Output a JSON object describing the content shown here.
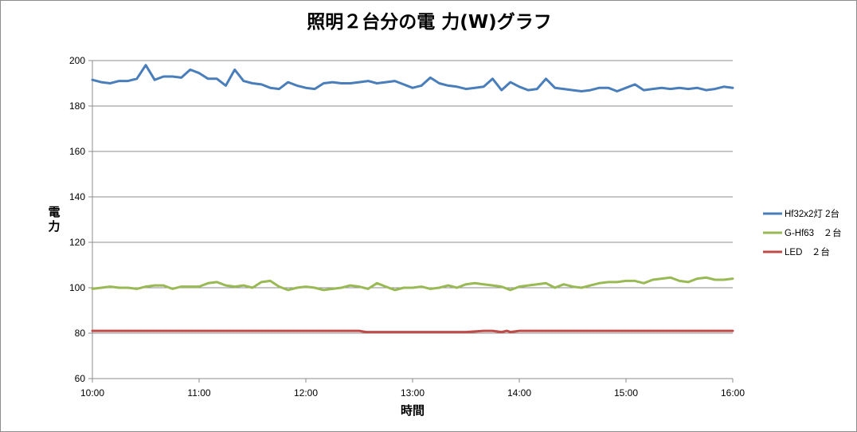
{
  "chart_data": {
    "type": "line",
    "title": "照明２台分の電 力(W)グラフ",
    "xlabel": "時間",
    "ylabel": "電\n力",
    "ylim": [
      60,
      200
    ],
    "yticks": [
      60,
      80,
      100,
      120,
      140,
      160,
      180,
      200
    ],
    "xlim": [
      "10:00",
      "16:00"
    ],
    "xticks": [
      "10:00",
      "11:00",
      "12:00",
      "13:00",
      "14:00",
      "15:00",
      "16:00"
    ],
    "grid": true,
    "legend_position": "right",
    "series": [
      {
        "name": "Hf32x2灯 2台",
        "color": "#4a7ebb",
        "x": [
          "10:00",
          "10:05",
          "10:10",
          "10:15",
          "10:20",
          "10:25",
          "10:30",
          "10:35",
          "10:40",
          "10:45",
          "10:50",
          "10:55",
          "11:00",
          "11:05",
          "11:10",
          "11:15",
          "11:20",
          "11:25",
          "11:30",
          "11:35",
          "11:40",
          "11:45",
          "11:50",
          "11:55",
          "12:00",
          "12:05",
          "12:10",
          "12:15",
          "12:20",
          "12:25",
          "12:30",
          "12:35",
          "12:40",
          "12:45",
          "12:50",
          "12:55",
          "13:00",
          "13:05",
          "13:10",
          "13:15",
          "13:20",
          "13:25",
          "13:30",
          "13:35",
          "13:40",
          "13:45",
          "13:50",
          "13:55",
          "14:00",
          "14:05",
          "14:10",
          "14:15",
          "14:20",
          "14:25",
          "14:30",
          "14:35",
          "14:40",
          "14:45",
          "14:50",
          "14:55",
          "15:00",
          "15:05",
          "15:10",
          "15:15",
          "15:20",
          "15:25",
          "15:30",
          "15:35",
          "15:40",
          "15:45",
          "15:50",
          "15:55",
          "16:00"
        ],
        "values": [
          191.5,
          190.5,
          190,
          191,
          191,
          192,
          198,
          191.5,
          193,
          193,
          192.5,
          196,
          194.5,
          192,
          192,
          189,
          196,
          191,
          190,
          189.5,
          188,
          187.5,
          190.5,
          189,
          188,
          187.5,
          190,
          190.5,
          190,
          190,
          190.5,
          191,
          190,
          190.5,
          191,
          189.5,
          188,
          189,
          192.5,
          190,
          189,
          188.5,
          187.5,
          188,
          188.5,
          192,
          187,
          190.5,
          188.5,
          187,
          187.5,
          192,
          188,
          187.5,
          187,
          186.5,
          187,
          188,
          188,
          186.5,
          188,
          189.5,
          187,
          187.5,
          188,
          187.5,
          188,
          187.5,
          188,
          187,
          187.5,
          188.5,
          188
        ]
      },
      {
        "name": "G-Hf63　２台",
        "color": "#98b954",
        "x": [
          "10:00",
          "10:05",
          "10:10",
          "10:15",
          "10:20",
          "10:25",
          "10:30",
          "10:35",
          "10:40",
          "10:45",
          "10:50",
          "10:55",
          "11:00",
          "11:05",
          "11:10",
          "11:15",
          "11:20",
          "11:25",
          "11:30",
          "11:35",
          "11:40",
          "11:45",
          "11:50",
          "11:55",
          "12:00",
          "12:05",
          "12:10",
          "12:15",
          "12:20",
          "12:25",
          "12:30",
          "12:35",
          "12:40",
          "12:45",
          "12:50",
          "12:55",
          "13:00",
          "13:05",
          "13:10",
          "13:15",
          "13:20",
          "13:25",
          "13:30",
          "13:35",
          "13:40",
          "13:45",
          "13:50",
          "13:55",
          "14:00",
          "14:05",
          "14:10",
          "14:15",
          "14:20",
          "14:25",
          "14:30",
          "14:35",
          "14:40",
          "14:45",
          "14:50",
          "14:55",
          "15:00",
          "15:05",
          "15:10",
          "15:15",
          "15:20",
          "15:25",
          "15:30",
          "15:35",
          "15:40",
          "15:45",
          "15:50",
          "15:55",
          "16:00"
        ],
        "values": [
          99.5,
          100,
          100.5,
          100,
          100,
          99.5,
          100.5,
          101,
          101,
          99.5,
          100.5,
          100.5,
          100.5,
          102,
          102.5,
          101,
          100.5,
          101,
          100,
          102.5,
          103,
          100.5,
          99,
          100,
          100.5,
          100,
          99,
          99.5,
          100,
          101,
          100.5,
          99.5,
          102,
          100.5,
          99,
          100,
          100,
          100.5,
          99.5,
          100,
          101,
          100,
          101.5,
          102,
          101.5,
          101,
          100.5,
          99,
          100.5,
          101,
          101.5,
          102,
          100,
          101.5,
          100.5,
          100,
          101,
          102,
          102.5,
          102.5,
          103,
          103,
          102,
          103.5,
          104,
          104.5,
          103,
          102.5,
          104,
          104.5,
          103.5,
          103.5,
          104
        ]
      },
      {
        "name": "LED　２台",
        "color": "#be4b48",
        "x": [
          "10:00",
          "10:30",
          "11:00",
          "11:30",
          "12:00",
          "12:30",
          "12:34",
          "13:00",
          "13:30",
          "13:40",
          "13:45",
          "13:50",
          "13:53",
          "13:55",
          "14:00",
          "14:30",
          "15:00",
          "15:30",
          "16:00"
        ],
        "values": [
          81,
          81,
          81,
          81,
          81,
          81,
          80.5,
          80.5,
          80.5,
          81,
          81,
          80.5,
          81,
          80.5,
          81,
          81,
          81,
          81,
          81
        ]
      }
    ]
  }
}
